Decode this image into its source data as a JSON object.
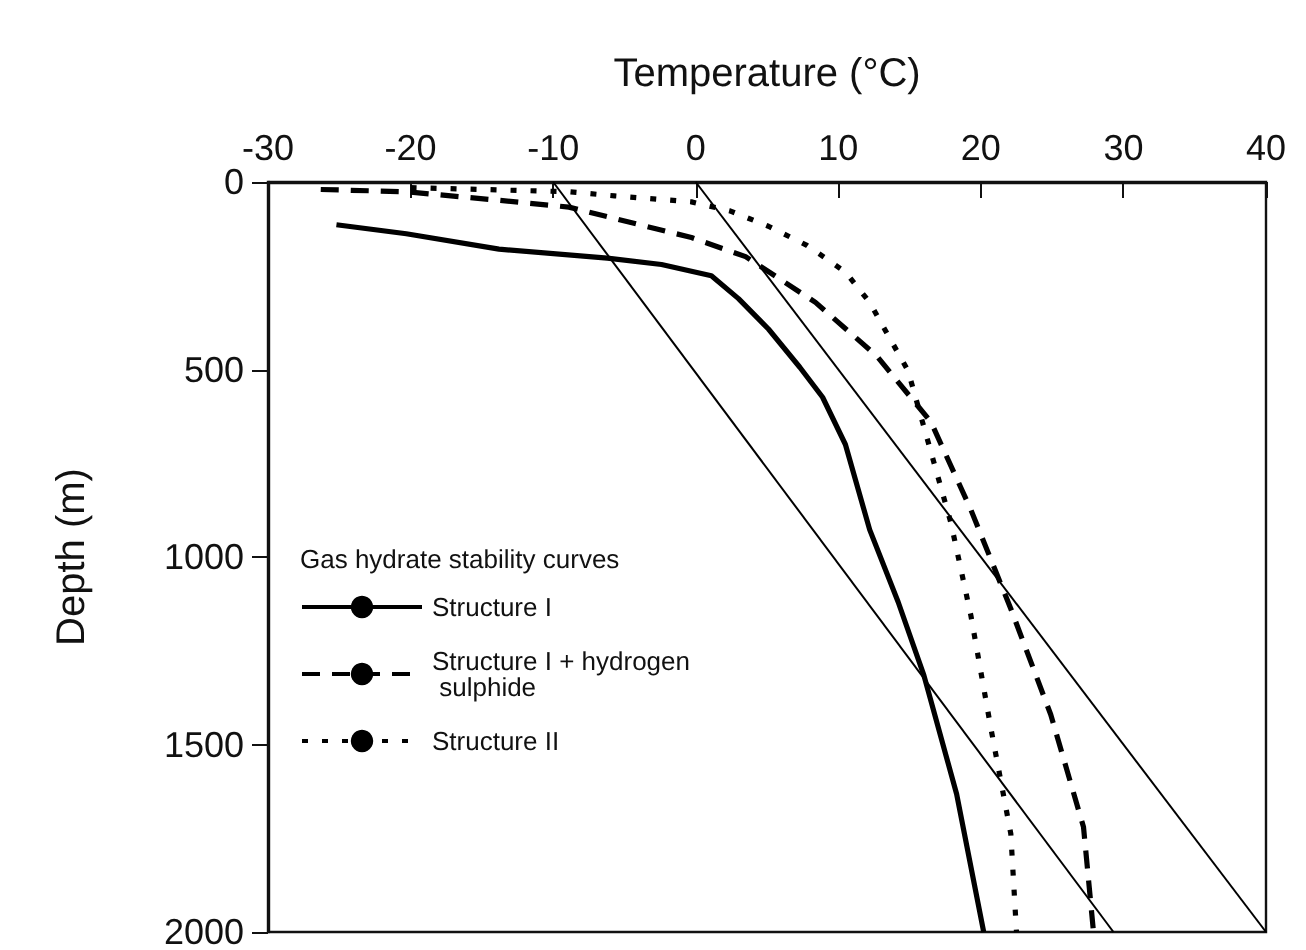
{
  "chart_data": {
    "type": "line",
    "xlabel": "Temperature (°C)",
    "ylabel": "Depth (m)",
    "legend_title": "Gas hydrate stability curves",
    "legend": "bottom left",
    "marker": "none",
    "grid": false,
    "xlim": [
      -30,
      40
    ],
    "xticks": [
      -30,
      -20,
      -10,
      0,
      10,
      20,
      30,
      40
    ],
    "ylim": [
      2000,
      0
    ],
    "yticks": [
      0,
      500,
      1000,
      1500,
      2000
    ],
    "series": [
      {
        "name": "Structure I",
        "color": "#000000",
        "line_style": "solid",
        "x": [
          -25.2,
          -20.3,
          -13.8,
          -6.2,
          -2.4,
          1.1,
          3.0,
          5.1,
          7.3,
          8.9,
          10.5,
          12.2,
          14.2,
          16.0,
          18.3,
          20.2
        ],
        "values": [
          114,
          138,
          179,
          203,
          220,
          250,
          311,
          392,
          494,
          574,
          700,
          927,
          1120,
          1315,
          1632,
          2000
        ]
      },
      {
        "name": "Structure I + hydrogen sulphide",
        "color": "#000000",
        "line_style": "dashed",
        "x": [
          -26.3,
          -20.3,
          -14.3,
          -8.9,
          -3.5,
          -0.3,
          3.5,
          8.4,
          12.7,
          16.5,
          19.3,
          22.1,
          24.9,
          27.2,
          27.9
        ],
        "values": [
          20,
          26,
          47,
          67,
          118,
          148,
          199,
          321,
          464,
          640,
          874,
          1138,
          1420,
          1720,
          2000
        ]
      },
      {
        "name": "Structure II",
        "color": "#000000",
        "line_style": "dotted",
        "x": [
          -20,
          -8.9,
          -5.7,
          -0.3,
          2.4,
          5.1,
          7.8,
          10.5,
          12.2,
          14.9,
          17.9,
          19.3,
          20.7,
          22.1,
          22.5
        ],
        "values": [
          15,
          26,
          37,
          53,
          77,
          118,
          169,
          240,
          321,
          504,
          909,
          1156,
          1456,
          1738,
          2000
        ]
      },
      {
        "color": "#000000",
        "line_style": "solid",
        "x": [
          -10,
          29.3
        ],
        "values": [
          0,
          2000
        ]
      },
      {
        "color": "#000000",
        "line_style": "solid",
        "x": [
          0,
          40
        ],
        "values": [
          0,
          2000
        ]
      }
    ]
  }
}
